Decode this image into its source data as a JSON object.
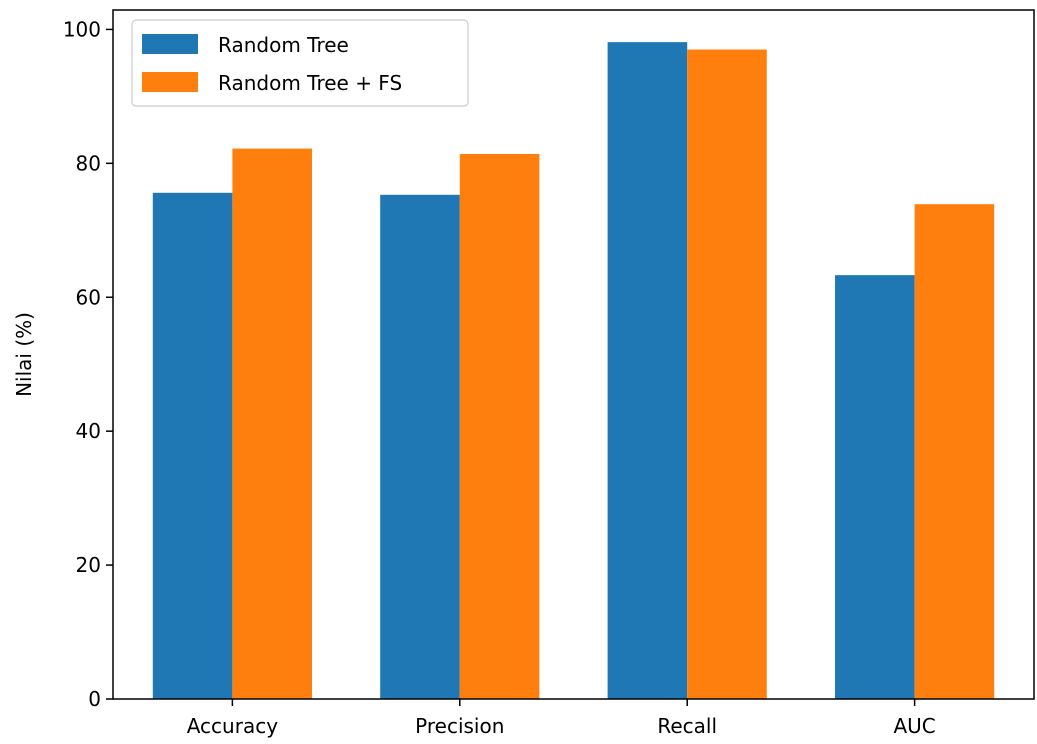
{
  "chart_data": {
    "type": "bar",
    "title": "",
    "xlabel": "",
    "ylabel": "Nilai (%)",
    "categories": [
      "Accuracy",
      "Precision",
      "Recall",
      "AUC"
    ],
    "series": [
      {
        "name": "Random Tree",
        "color": "#1f77b4",
        "values": [
          75.6,
          75.3,
          98.1,
          63.3
        ]
      },
      {
        "name": "Random Tree + FS",
        "color": "#ff7f0e",
        "values": [
          82.2,
          81.4,
          97.0,
          73.9
        ]
      }
    ],
    "ylim": [
      0,
      102.9
    ],
    "yticks": [
      0,
      20,
      40,
      60,
      80,
      100
    ],
    "ytick_labels": [
      "0",
      "20",
      "40",
      "60",
      "80",
      "100"
    ],
    "grid": false,
    "legend_position": "top-left"
  }
}
